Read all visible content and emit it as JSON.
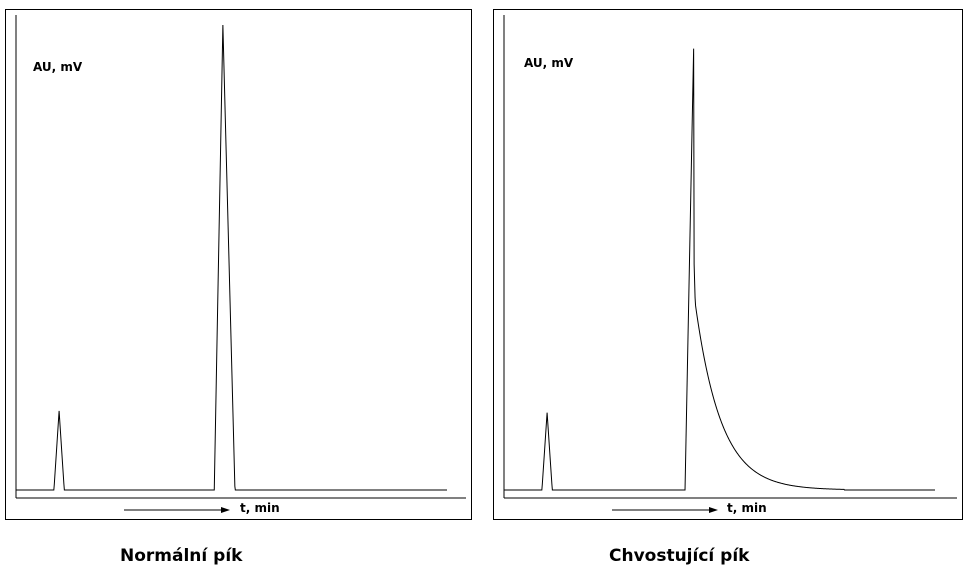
{
  "chart_data": [
    {
      "type": "line",
      "title": "Normální pík",
      "ylabel": "AU, mV",
      "xlabel": "t, min",
      "grid": false,
      "peaks": [
        {
          "center": 0.1,
          "height": 0.17,
          "rise": 0.012,
          "fall": 0.012,
          "tail": 0
        },
        {
          "center": 0.48,
          "height": 1.0,
          "rise": 0.02,
          "fall": 0.028,
          "tail": 0
        }
      ]
    },
    {
      "type": "line",
      "title": "Chvostující pík",
      "ylabel": "AU, mV",
      "xlabel": "t, min",
      "grid": false,
      "peaks": [
        {
          "center": 0.1,
          "height": 0.17,
          "rise": 0.012,
          "fall": 0.012,
          "tail": 0
        },
        {
          "center": 0.44,
          "height": 0.97,
          "rise": 0.02,
          "fall": 0.016,
          "tail": 0.06
        }
      ]
    }
  ]
}
